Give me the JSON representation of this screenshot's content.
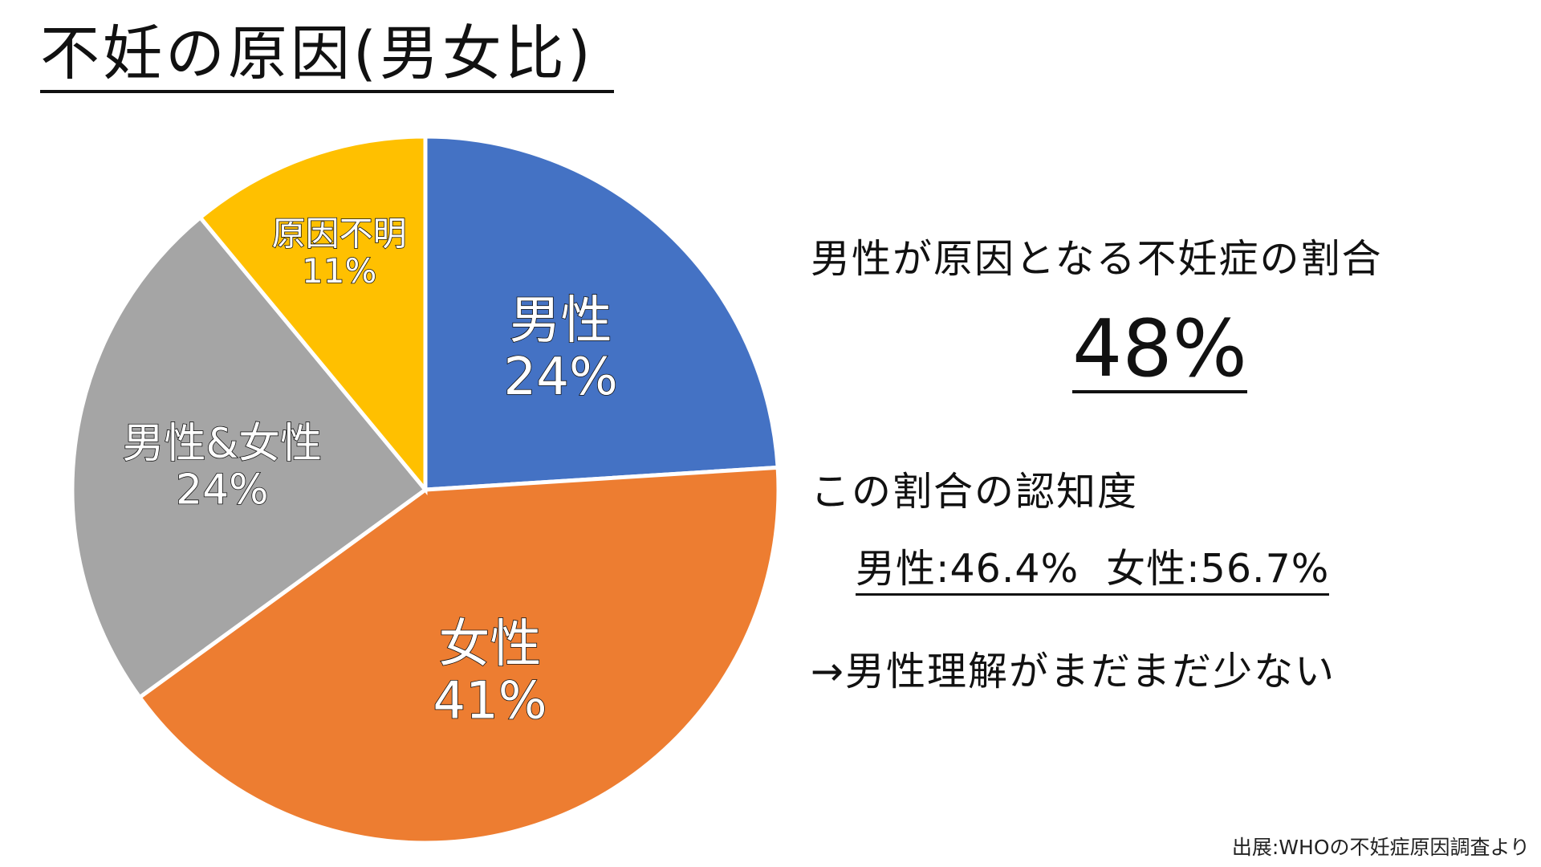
{
  "page": {
    "title": "不妊の原因(男女比)"
  },
  "chart_data": {
    "type": "pie",
    "title": "",
    "start_angle_deg": 0,
    "direction": "clockwise",
    "slices": [
      {
        "name": "男性",
        "value": 24,
        "value_label": "24%",
        "color": "#4472C4"
      },
      {
        "name": "女性",
        "value": 41,
        "value_label": "41%",
        "color": "#ED7D31"
      },
      {
        "name": "男性&女性",
        "value": 24,
        "value_label": "24%",
        "color": "#A5A5A5"
      },
      {
        "name": "原因不明",
        "value": 11,
        "value_label": "11%",
        "color": "#FFC000"
      }
    ]
  },
  "panel": {
    "heading": "男性が原因となる不妊症の割合",
    "big_value": "48%",
    "awareness_heading": "この割合の認知度",
    "awareness_male": "男性:46.4%",
    "awareness_female": "女性:56.7%",
    "conclusion": "→男性理解がまだまだ少ない"
  },
  "source": "出展:WHOの不妊症原因調査より"
}
